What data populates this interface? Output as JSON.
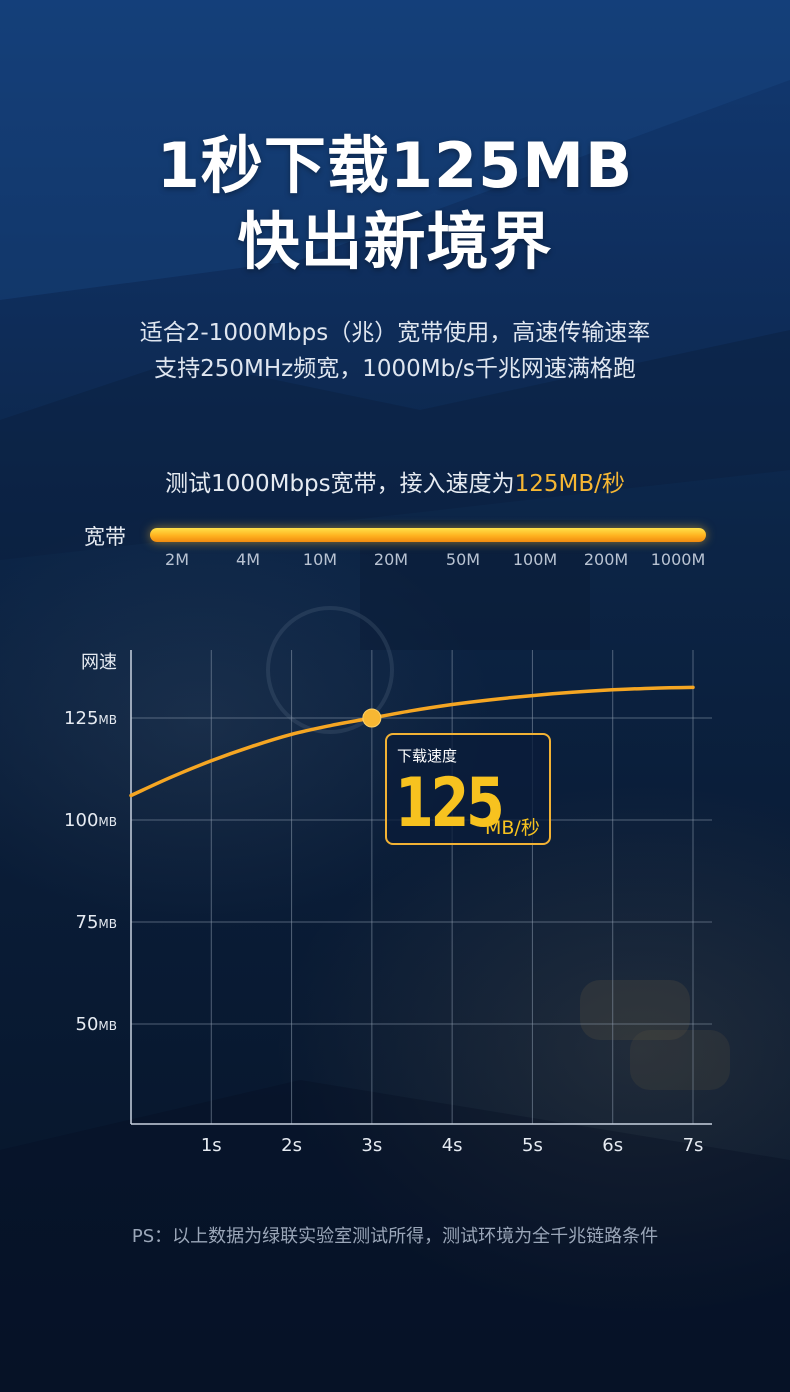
{
  "headline": {
    "line1": "1秒下载125MB",
    "line2": "快出新境界"
  },
  "subtitle": {
    "line1": "适合2-1000Mbps（兆）宽带使用，高速传输速率",
    "line2": "支持250MHz频宽，1000Mb/s千兆网速满格跑"
  },
  "test": {
    "prefix": "测试1000Mbps宽带，接入速度为",
    "highlight": "125MB/秒"
  },
  "bandwidth": {
    "label": "宽带",
    "ticks": [
      "2M",
      "4M",
      "10M",
      "20M",
      "50M",
      "100M",
      "200M",
      "1000M"
    ]
  },
  "callout": {
    "title": "下载速度",
    "value": "125",
    "unit": "MB/秒"
  },
  "footnote": "PS：以上数据为绿联实验室测试所得，测试环境为全千兆链路条件",
  "colors": {
    "accent": "#f7b733",
    "line": "#f5a623",
    "grid": "#8c9aad"
  },
  "chart_data": {
    "type": "line",
    "ylabel": "网速",
    "xlabel": "",
    "x_ticks": [
      "1s",
      "2s",
      "3s",
      "4s",
      "5s",
      "6s",
      "7s"
    ],
    "y_ticks": [
      {
        "value": 125,
        "label": "125MB"
      },
      {
        "value": 100,
        "label": "100MB"
      },
      {
        "value": 75,
        "label": "75MB"
      },
      {
        "value": 50,
        "label": "50MB"
      }
    ],
    "xlim": [
      0,
      7
    ],
    "ylim": [
      28,
      140
    ],
    "series": [
      {
        "values": [
          {
            "x": 0,
            "y": 106
          },
          {
            "x": 0.5,
            "y": 110.5
          },
          {
            "x": 1,
            "y": 114.5
          },
          {
            "x": 1.5,
            "y": 118
          },
          {
            "x": 2,
            "y": 121
          },
          {
            "x": 2.5,
            "y": 123.2
          },
          {
            "x": 3,
            "y": 125
          },
          {
            "x": 3.5,
            "y": 126.8
          },
          {
            "x": 4,
            "y": 128.3
          },
          {
            "x": 4.5,
            "y": 129.5
          },
          {
            "x": 5,
            "y": 130.5
          },
          {
            "x": 5.5,
            "y": 131.3
          },
          {
            "x": 6,
            "y": 131.9
          },
          {
            "x": 6.5,
            "y": 132.3
          },
          {
            "x": 7,
            "y": 132.5
          }
        ]
      }
    ],
    "marker": {
      "x": 3,
      "y": 125
    },
    "grid": true
  }
}
